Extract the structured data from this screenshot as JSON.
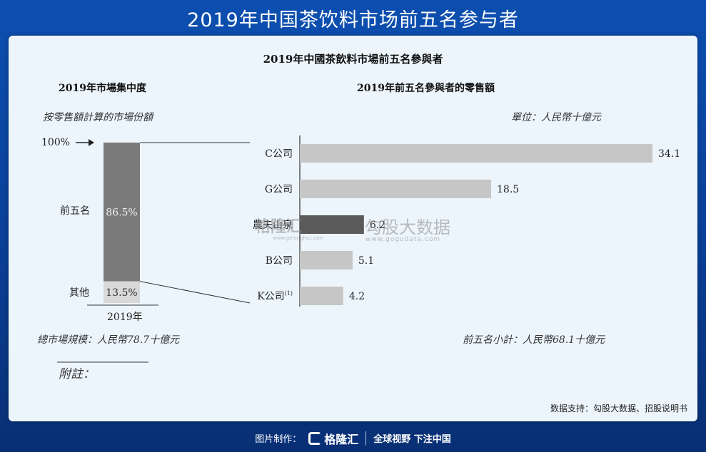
{
  "page_title": "2019年中国茶饮料市场前五名参与者",
  "figure": {
    "main_title": "2019年中國茶飲料市場前五名參與者",
    "left_title": "2019年市場集中度",
    "left_subtitle": "按零售額計算的市場份額",
    "arrow_label": "100%",
    "top5_label": "前五名",
    "others_label": "其他",
    "year_label": "2019年",
    "market_size": "總市場規模：人民幣78.7十億元",
    "note_label": "附註：",
    "right_title": "2019年前五名參與者的零售額",
    "unit": "單位：人民幣十億元",
    "subtotal": "前五名小計：人民幣68.1十億元"
  },
  "chart_data": [
    {
      "type": "bar",
      "stacked": true,
      "categories": [
        "2019年"
      ],
      "series": [
        {
          "name": "前五名",
          "values": [
            86.5
          ],
          "label": "86.5%",
          "color": "#7a7a7a"
        },
        {
          "name": "其他",
          "values": [
            13.5
          ],
          "label": "13.5%",
          "color": "#d8d8d8"
        }
      ],
      "ylim": [
        0,
        100
      ]
    },
    {
      "type": "bar",
      "orientation": "horizontal",
      "categories": [
        "C公司",
        "G公司",
        "農夫山泉",
        "B公司",
        "K公司"
      ],
      "category_superscripts": [
        "",
        "",
        "",
        "",
        "(1)"
      ],
      "values": [
        34.1,
        18.5,
        6.2,
        5.1,
        4.2
      ],
      "value_labels": [
        "34.1",
        "18.5",
        "6.2",
        "5.1",
        "4.2"
      ],
      "colors": [
        "#c6c6c6",
        "#c6c6c6",
        "#5a5a5a",
        "#c6c6c6",
        "#c6c6c6"
      ],
      "xlim": [
        0,
        34.1
      ]
    }
  ],
  "watermark": {
    "brand1": "格隆汇",
    "brand1_url": "www.gelonghui.com",
    "brand2": "勾股大数据",
    "brand2_url": "www.gogudata.com"
  },
  "source": "数据支持：勾股大数据、招股说明书",
  "footer": {
    "made_by": "图片制作：",
    "logo_text": "格隆汇",
    "slogan": "全球视野 下注中国"
  }
}
